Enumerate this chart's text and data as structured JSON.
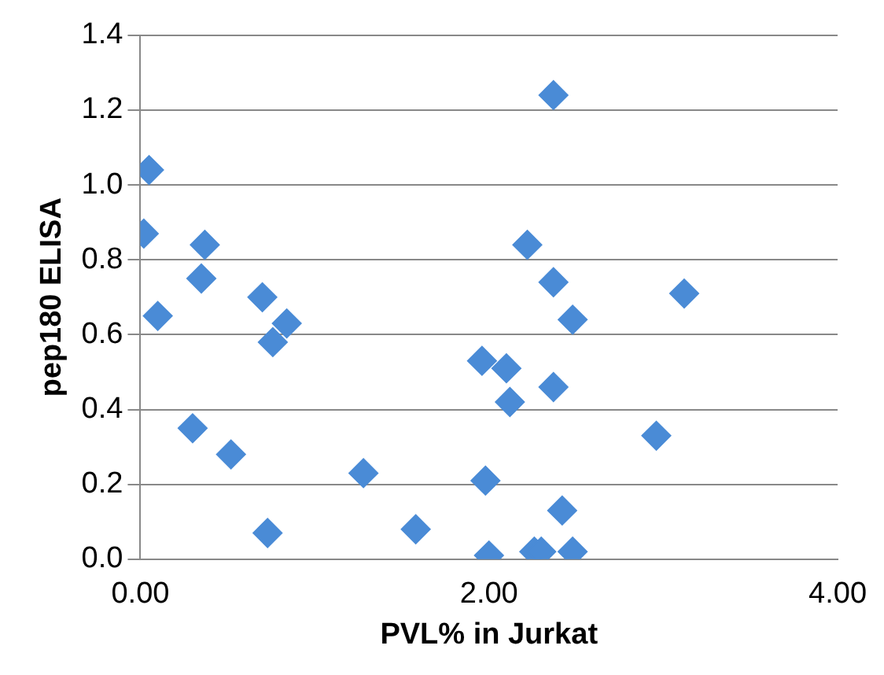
{
  "chart_data": {
    "type": "scatter",
    "xlabel": "PVL% in Jurkat",
    "ylabel": "pep180 ELISA",
    "x": [
      0.05,
      0.02,
      0.37,
      0.35,
      0.1,
      0.7,
      0.76,
      0.84,
      0.3,
      0.52,
      1.28,
      0.73,
      1.58,
      2.0,
      1.98,
      1.96,
      2.1,
      2.12,
      2.37,
      2.22,
      2.37,
      2.48,
      2.37,
      2.42,
      2.26,
      2.3,
      2.48,
      3.12,
      2.96
    ],
    "series": [
      {
        "color": "#4a8bd6",
        "values": [
          1.04,
          0.87,
          0.84,
          0.75,
          0.65,
          0.7,
          0.58,
          0.63,
          0.35,
          0.28,
          0.23,
          0.07,
          0.08,
          0.01,
          0.21,
          0.53,
          0.51,
          0.42,
          1.24,
          0.84,
          0.74,
          0.64,
          0.46,
          0.13,
          0.02,
          0.02,
          0.02,
          0.71,
          0.33
        ]
      }
    ],
    "xlim": [
      0,
      4
    ],
    "xticks": [
      {
        "value": 0,
        "label": "0.00"
      },
      {
        "value": 2,
        "label": "2.00"
      },
      {
        "value": 4,
        "label": "4.00"
      }
    ],
    "ylim": [
      0,
      1.4
    ],
    "yticks": [
      {
        "value": 0,
        "label": "0.0"
      },
      {
        "value": 0.2,
        "label": "0.2"
      },
      {
        "value": 0.4,
        "label": "0.4"
      },
      {
        "value": 0.6,
        "label": "0.6"
      },
      {
        "value": 0.8,
        "label": "0.8"
      },
      {
        "value": 1,
        "label": "1.0"
      },
      {
        "value": 1.2,
        "label": "1.2"
      },
      {
        "value": 1.4,
        "label": "1.4"
      }
    ],
    "grid": "y",
    "marker": "diamond",
    "legend": false
  }
}
